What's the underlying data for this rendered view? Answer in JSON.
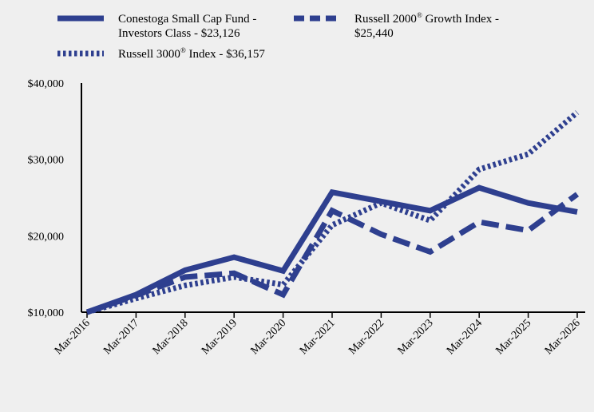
{
  "chart_data": {
    "type": "line",
    "categories": [
      "Mar-2016",
      "Mar-2017",
      "Mar-2018",
      "Mar-2019",
      "Mar-2020",
      "Mar-2021",
      "Mar-2022",
      "Mar-2023",
      "Mar-2024",
      "Mar-2025",
      "Mar-2026"
    ],
    "y_ticks": [
      "$10,000",
      "$20,000",
      "$30,000",
      "$40,000"
    ],
    "ylim": [
      10000,
      40000
    ],
    "grid": false,
    "legend_position": "top",
    "series": [
      {
        "name_line1": "Conestoga Small Cap Fund -",
        "name_line2": "Investors Class - $23,126",
        "style": "solid",
        "color": "#2e3f8f",
        "values": [
          10000,
          12300,
          15500,
          17200,
          15400,
          25700,
          24500,
          23300,
          26300,
          24300,
          23126
        ]
      },
      {
        "name_line1_pre": "Russell 2000",
        "name_line1_sup": "®",
        "name_line1_post": " Growth Index -",
        "name_line2": "$25,440",
        "style": "dashed",
        "color": "#2e3f8f",
        "values": [
          10000,
          12200,
          14600,
          15100,
          12300,
          23300,
          20200,
          17900,
          21800,
          20700,
          25440
        ]
      },
      {
        "name_line1_pre": "Russell 3000",
        "name_line1_sup": "®",
        "name_line1_post": " Index - $36,157",
        "style": "dotted",
        "color": "#2e3f8f",
        "values": [
          10000,
          11800,
          13500,
          14600,
          13600,
          21400,
          24300,
          22000,
          28700,
          30700,
          36157
        ]
      }
    ]
  }
}
